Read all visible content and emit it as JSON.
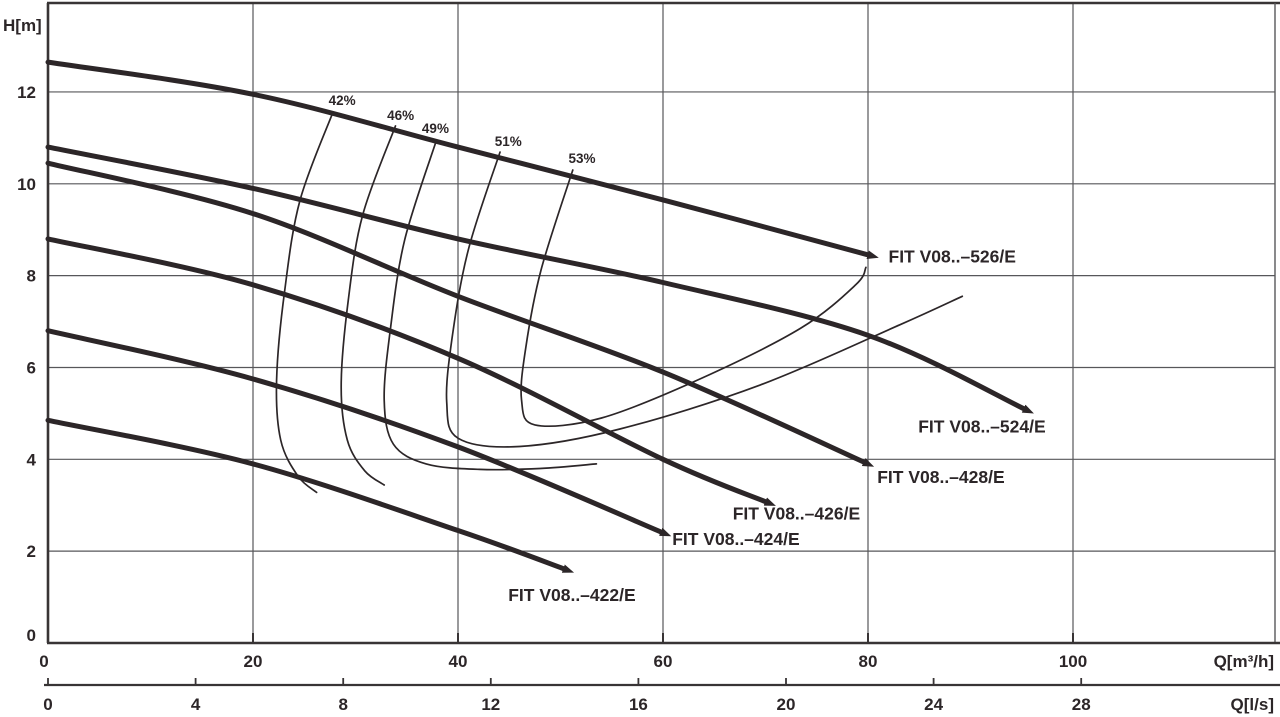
{
  "figure": {
    "background": "#ffffff",
    "ink_color": "#2c2628",
    "grid_color": "#57575a",
    "border_color": "#383435"
  },
  "chart_data": {
    "type": "line",
    "ylabel": "H[m]",
    "xlabel_primary": "Q[m³/h]",
    "xlabel_secondary": "Q[l/s]",
    "y_ticks": [
      12,
      10,
      8,
      6,
      4,
      2,
      0
    ],
    "x_ticks_primary": [
      0,
      20,
      40,
      60,
      80,
      100
    ],
    "x_ticks_secondary": [
      0,
      4,
      8,
      12,
      16,
      20,
      24,
      28
    ],
    "xlim": [
      0,
      120
    ],
    "ylim": [
      0,
      13.9
    ],
    "grid": true,
    "legend_position": "inline-labels",
    "series": [
      {
        "name": "FIT V08..–526/E",
        "points": [
          [
            0,
            12.65
          ],
          [
            20,
            11.95
          ],
          [
            40,
            10.8
          ],
          [
            60,
            9.65
          ],
          [
            80.2,
            8.44
          ]
        ],
        "label_anchor": [
          82.0,
          8.42
        ]
      },
      {
        "name": "FIT V08..–524/E",
        "points": [
          [
            0,
            10.8
          ],
          [
            20,
            9.9
          ],
          [
            40,
            8.8
          ],
          [
            60,
            7.85
          ],
          [
            80,
            6.7
          ],
          [
            95.4,
            5.08
          ]
        ],
        "label_anchor": [
          84.9,
          4.71
        ]
      },
      {
        "name": "FIT V08..–428/E",
        "points": [
          [
            0,
            10.45
          ],
          [
            20,
            9.35
          ],
          [
            40,
            7.55
          ],
          [
            60,
            5.9
          ],
          [
            79.8,
            3.92
          ]
        ],
        "label_anchor": [
          80.9,
          3.62
        ]
      },
      {
        "name": "FIT V08..–426/E",
        "points": [
          [
            0,
            8.8
          ],
          [
            20,
            7.8
          ],
          [
            40,
            6.2
          ],
          [
            60,
            4.0
          ],
          [
            70.2,
            3.06
          ]
        ],
        "label_anchor": [
          66.8,
          2.82
        ]
      },
      {
        "name": "FIT V08..–424/E",
        "points": [
          [
            0,
            6.8
          ],
          [
            20,
            5.75
          ],
          [
            40,
            4.27
          ],
          [
            60,
            2.4
          ]
        ],
        "label_anchor": [
          60.9,
          2.27
        ]
      },
      {
        "name": "FIT V08..–422/E",
        "points": [
          [
            0,
            4.85
          ],
          [
            20,
            3.9
          ],
          [
            40,
            2.45
          ],
          [
            50.5,
            1.6
          ]
        ],
        "label_anchor": [
          44.9,
          1.05
        ]
      }
    ],
    "efficiency_contours": [
      {
        "label": "42%",
        "label_anchor": [
          28.7,
          11.8
        ],
        "points": [
          [
            27.8,
            11.56
          ],
          [
            24.6,
            9.65
          ],
          [
            23.1,
            7.69
          ],
          [
            22.3,
            5.73
          ],
          [
            22.7,
            4.42
          ],
          [
            24.4,
            3.63
          ],
          [
            26.2,
            3.28
          ]
        ]
      },
      {
        "label": "46%",
        "label_anchor": [
          34.4,
          11.48
        ],
        "points": [
          [
            33.9,
            11.26
          ],
          [
            30.7,
            9.32
          ],
          [
            29.3,
            7.47
          ],
          [
            28.6,
            5.62
          ],
          [
            29.2,
            4.42
          ],
          [
            30.9,
            3.75
          ],
          [
            32.8,
            3.44
          ]
        ]
      },
      {
        "label": "49%",
        "label_anchor": [
          37.8,
          11.19
        ],
        "points": [
          [
            37.9,
            10.95
          ],
          [
            34.8,
            8.78
          ],
          [
            33.4,
            6.82
          ],
          [
            32.8,
            5.29
          ],
          [
            33.7,
            4.33
          ],
          [
            36.9,
            3.9
          ],
          [
            42.1,
            3.78
          ],
          [
            48.0,
            3.8
          ],
          [
            53.5,
            3.9
          ]
        ]
      },
      {
        "label": "51%",
        "label_anchor": [
          44.9,
          10.91
        ],
        "points": [
          [
            44.1,
            10.69
          ],
          [
            41.0,
            8.56
          ],
          [
            39.4,
            6.6
          ],
          [
            38.9,
            5.25
          ],
          [
            40.0,
            4.46
          ],
          [
            46.0,
            4.28
          ],
          [
            55.8,
            4.66
          ],
          [
            69.5,
            5.62
          ],
          [
            83.1,
            6.93
          ],
          [
            89.2,
            7.55
          ]
        ]
      },
      {
        "label": "53%",
        "label_anchor": [
          52.1,
          10.54
        ],
        "points": [
          [
            51.2,
            10.3
          ],
          [
            48.1,
            8.12
          ],
          [
            46.6,
            6.42
          ],
          [
            46.2,
            5.3
          ],
          [
            47.5,
            4.75
          ],
          [
            54.0,
            4.9
          ],
          [
            63.6,
            5.75
          ],
          [
            73.4,
            6.85
          ],
          [
            78.8,
            7.8
          ],
          [
            79.8,
            8.18
          ]
        ]
      }
    ]
  }
}
